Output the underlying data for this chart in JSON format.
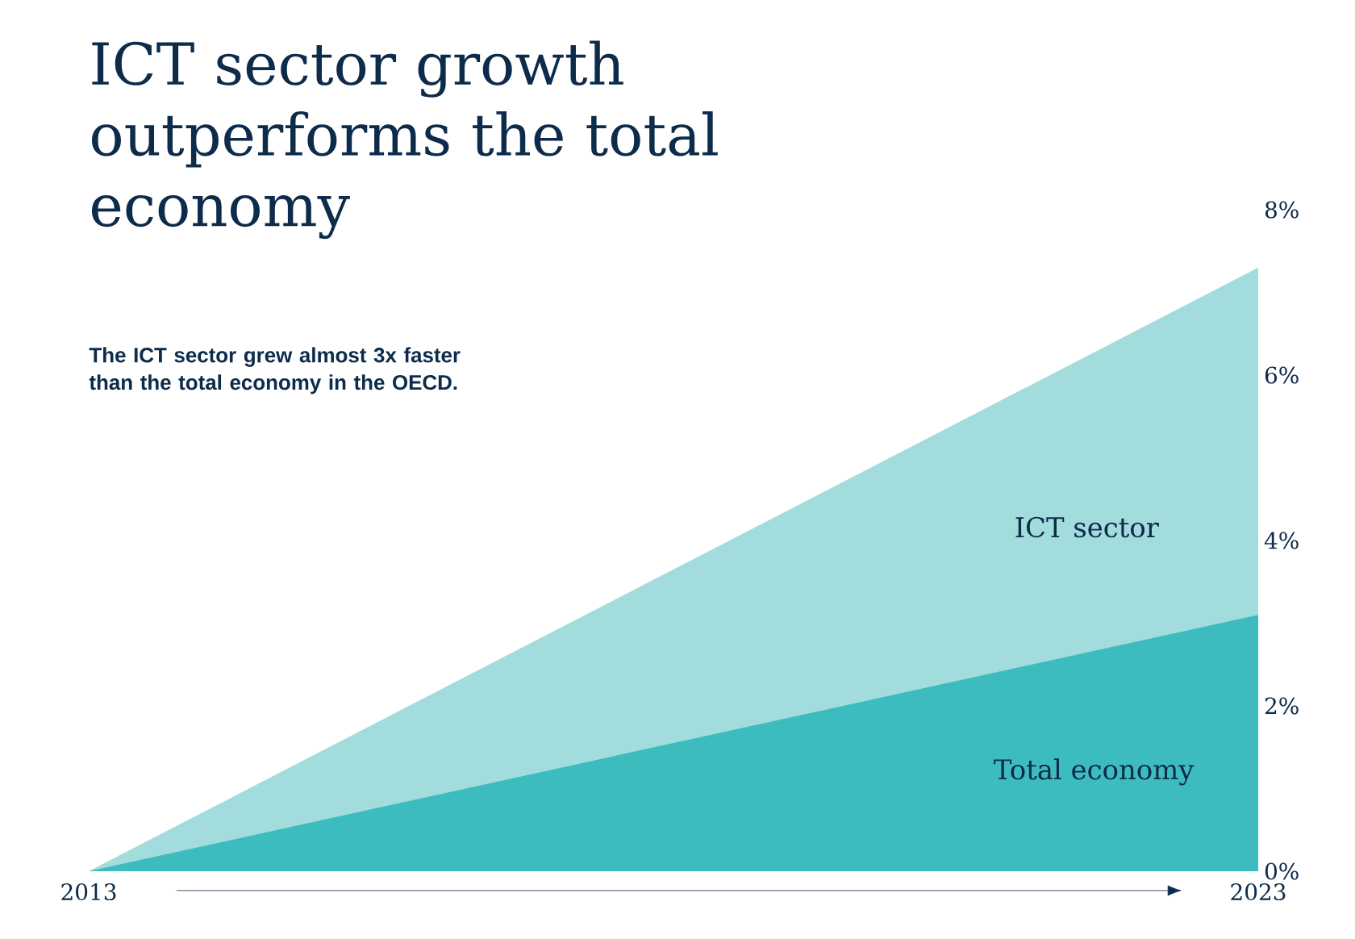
{
  "chart_data": {
    "type": "area",
    "title": "ICT sector growth outperforms the total economy",
    "subtitle": "The ICT sector grew almost 3x faster than the total economy in the OECD.",
    "x": [
      2013,
      2023
    ],
    "xlim": [
      2013,
      2023
    ],
    "xticks": [
      2013,
      2023
    ],
    "ylim": [
      0,
      8
    ],
    "yticks": [
      {
        "value": 0,
        "label": "0%"
      },
      {
        "value": 2,
        "label": "2%"
      },
      {
        "value": 4,
        "label": "4%"
      },
      {
        "value": 6,
        "label": "6%"
      },
      {
        "value": 8,
        "label": "8%"
      }
    ],
    "series": [
      {
        "name": "ICT sector",
        "color": "#a3dcdc",
        "values": [
          0,
          7.3
        ]
      },
      {
        "name": "Total economy",
        "color": "#3dbcbf",
        "values": [
          0,
          3.1
        ]
      }
    ],
    "grid": false
  }
}
